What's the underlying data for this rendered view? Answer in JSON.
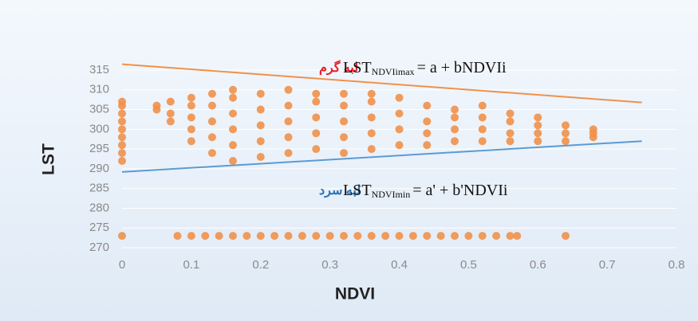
{
  "chart_data": {
    "type": "scatter",
    "xlabel": "NDVI",
    "ylabel": "LST",
    "xlim": [
      0,
      0.8
    ],
    "xticks": [
      0,
      0.1,
      0.2,
      0.3,
      0.4,
      0.5,
      0.6,
      0.7,
      0.8
    ],
    "ylim": [
      270,
      315
    ],
    "yticks": [
      270,
      275,
      280,
      285,
      290,
      295,
      300,
      305,
      310,
      315
    ],
    "grid": true,
    "color": "#f0914a",
    "x": [
      0,
      0,
      0,
      0,
      0,
      0,
      0,
      0,
      0,
      0,
      0.08,
      0.1,
      0.12,
      0.14,
      0.16,
      0.18,
      0.2,
      0.22,
      0.24,
      0.26,
      0.28,
      0.3,
      0.32,
      0.34,
      0.36,
      0.38,
      0.4,
      0.42,
      0.44,
      0.46,
      0.48,
      0.5,
      0.52,
      0.54,
      0.56,
      0.57,
      0.64,
      0.05,
      0.05,
      0.07,
      0.07,
      0.07,
      0.1,
      0.1,
      0.1,
      0.1,
      0.1,
      0.13,
      0.13,
      0.13,
      0.13,
      0.13,
      0.16,
      0.16,
      0.16,
      0.16,
      0.16,
      0.16,
      0.2,
      0.2,
      0.2,
      0.2,
      0.2,
      0.24,
      0.24,
      0.24,
      0.24,
      0.24,
      0.28,
      0.28,
      0.28,
      0.28,
      0.28,
      0.32,
      0.32,
      0.32,
      0.32,
      0.32,
      0.36,
      0.36,
      0.36,
      0.36,
      0.36,
      0.4,
      0.4,
      0.4,
      0.4,
      0.44,
      0.44,
      0.44,
      0.44,
      0.48,
      0.48,
      0.48,
      0.48,
      0.52,
      0.52,
      0.52,
      0.52,
      0.56,
      0.56,
      0.56,
      0.56,
      0.6,
      0.6,
      0.6,
      0.6,
      0.64,
      0.64,
      0.64,
      0.68,
      0.68,
      0.68
    ],
    "values": [
      292,
      294,
      296,
      298,
      300,
      302,
      304,
      306,
      307,
      273,
      273,
      273,
      273,
      273,
      273,
      273,
      273,
      273,
      273,
      273,
      273,
      273,
      273,
      273,
      273,
      273,
      273,
      273,
      273,
      273,
      273,
      273,
      273,
      273,
      273,
      273,
      273,
      305,
      306,
      302,
      304,
      307,
      297,
      300,
      303,
      306,
      308,
      294,
      298,
      302,
      306,
      309,
      292,
      296,
      300,
      304,
      308,
      310,
      293,
      297,
      301,
      305,
      309,
      294,
      298,
      302,
      306,
      310,
      295,
      299,
      303,
      307,
      309,
      294,
      298,
      302,
      306,
      309,
      295,
      299,
      303,
      307,
      309,
      296,
      300,
      304,
      308,
      296,
      299,
      302,
      306,
      297,
      300,
      303,
      305,
      297,
      300,
      303,
      306,
      297,
      299,
      302,
      304,
      297,
      299,
      301,
      303,
      297,
      299,
      301,
      298,
      299,
      300
    ],
    "lines": [
      {
        "color": "#f0914a",
        "x": [
          0,
          0.75
        ],
        "values": [
          316.5,
          306.8
        ]
      },
      {
        "color": "#5b9bd5",
        "x": [
          0,
          0.75
        ],
        "values": [
          289.2,
          297
        ]
      }
    ],
    "annotations": [
      {
        "edge": "لبه گرم",
        "edge_color": "#e8202a",
        "main": "LST",
        "sub": "NDVIimax",
        "rest": "= a + bNDVIi"
      },
      {
        "edge": "لبه سرد",
        "edge_color": "#2e75b6",
        "main": "LST",
        "sub": "NDVImin",
        "rest": "= a' + b'NDVIi"
      }
    ]
  }
}
